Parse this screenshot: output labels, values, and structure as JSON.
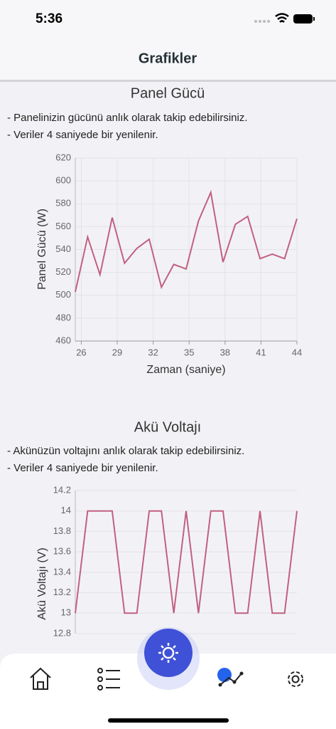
{
  "status_bar": {
    "time": "5:36"
  },
  "header": {
    "title": "Grafikler"
  },
  "chart_data": [
    {
      "type": "line",
      "title": "Panel Gücü",
      "notes": [
        "- Panelinizin gücünü anlık olarak takip edebilirsiniz.",
        "- Veriler 4 saniyede bir yenilenir."
      ],
      "xlabel": "Zaman (saniye)",
      "ylabel": "Panel Gücü (W)",
      "color": "#c2607f",
      "grid": true,
      "x": [
        25.5,
        26.53,
        27.56,
        28.58,
        29.61,
        30.64,
        31.67,
        32.69,
        33.72,
        34.75,
        35.78,
        36.81,
        37.83,
        38.86,
        39.89,
        40.92,
        41.94,
        42.97,
        44
      ],
      "values": [
        503,
        551,
        518,
        568,
        528,
        541,
        549,
        507,
        527,
        523,
        565,
        590,
        529,
        562,
        569,
        532,
        536,
        532,
        567
      ],
      "xlim": [
        25.5,
        44
      ],
      "xticks": [
        26,
        29,
        32,
        35,
        38,
        41,
        44
      ],
      "ylim": [
        460,
        620
      ],
      "yticks": [
        460,
        480,
        500,
        520,
        540,
        560,
        580,
        600,
        620
      ]
    },
    {
      "type": "line",
      "title": "Akü Voltajı",
      "notes": [
        "- Akünüzün voltajını anlık olarak takip edebilirsiniz.",
        "- Veriler 4 saniyede bir yenilenir."
      ],
      "ylabel": "Akü Voltajı (V)",
      "color": "#c2607f",
      "grid": true,
      "x": [
        25.5,
        26.53,
        27.56,
        28.58,
        29.61,
        30.64,
        31.67,
        32.69,
        33.72,
        34.75,
        35.78,
        36.81,
        37.83,
        38.86,
        39.89,
        40.92,
        41.94,
        42.97,
        44
      ],
      "values": [
        13,
        14,
        14,
        14,
        13,
        13,
        14,
        14,
        13,
        14,
        13,
        14,
        14,
        13,
        13,
        14,
        13,
        13,
        14
      ],
      "xlim": [
        25.5,
        44
      ],
      "ylim": [
        12.8,
        14.2
      ],
      "yticks": [
        12.8,
        13,
        13.2,
        13.4,
        13.6,
        13.8,
        14,
        14.2
      ]
    }
  ]
}
